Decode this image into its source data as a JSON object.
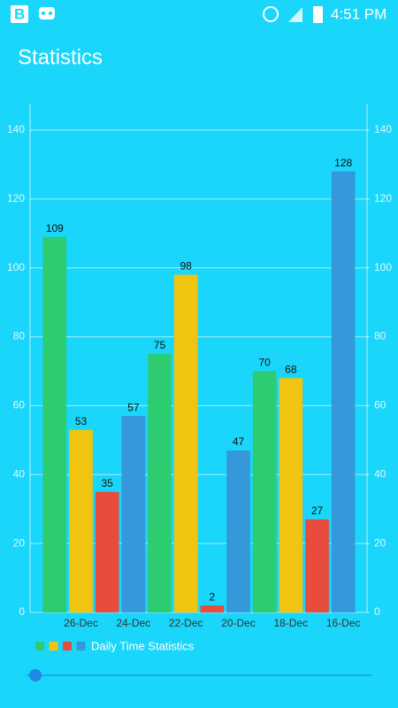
{
  "status_bar": {
    "time": "4:51 PM"
  },
  "header": {
    "title": "Statistics"
  },
  "chart_data": {
    "type": "bar",
    "categories": [
      null,
      "26-Dec",
      null,
      "24-Dec",
      null,
      "22-Dec",
      null,
      "20-Dec",
      null,
      "18-Dec",
      null,
      "16-Dec"
    ],
    "series": [
      {
        "name": "Daily Time Statistics",
        "colors": [
          "#2ecc71",
          "#f1c40f",
          "#e74c3c",
          "#3498db"
        ],
        "values": [
          109,
          53,
          35,
          57,
          75,
          98,
          2,
          47,
          70,
          68,
          27,
          128
        ]
      }
    ],
    "ylim": [
      0,
      140
    ],
    "yticks": [
      0,
      20,
      40,
      60,
      80,
      100,
      120,
      140
    ],
    "y2lim": [
      0,
      140
    ],
    "y2ticks": [
      0,
      20,
      40,
      60,
      80,
      100,
      120,
      140
    ],
    "grid": true,
    "legend": "bottom-left"
  }
}
